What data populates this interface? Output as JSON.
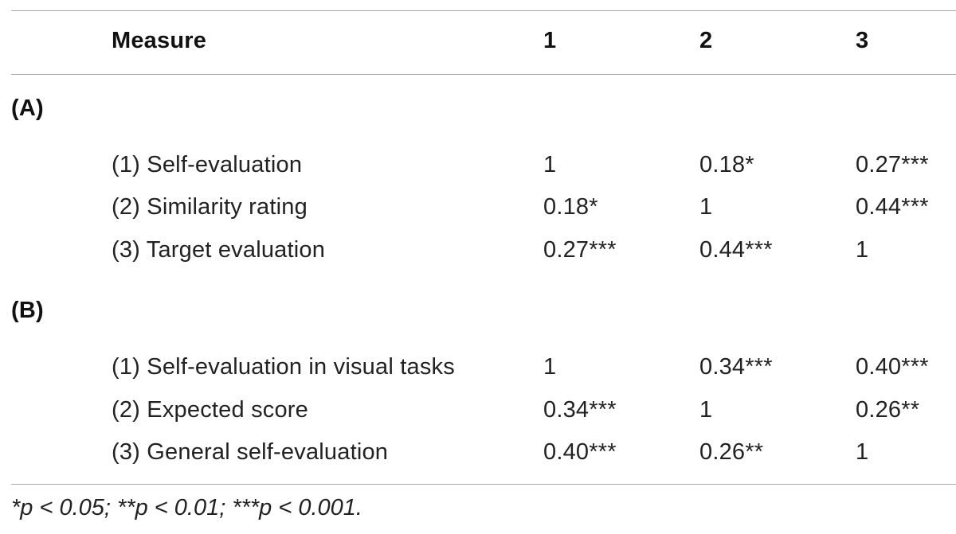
{
  "table": {
    "headers": [
      "Measure",
      "1",
      "2",
      "3"
    ],
    "sections": [
      {
        "label": "(A)",
        "rows": [
          {
            "measure": "(1) Self-evaluation",
            "c1": "1",
            "c2": "0.18*",
            "c3": "0.27***"
          },
          {
            "measure": "(2) Similarity rating",
            "c1": "0.18*",
            "c2": "1",
            "c3": "0.44***"
          },
          {
            "measure": "(3) Target evaluation",
            "c1": "0.27***",
            "c2": "0.44***",
            "c3": "1"
          }
        ]
      },
      {
        "label": "(B)",
        "rows": [
          {
            "measure": "(1) Self-evaluation in visual tasks",
            "c1": "1",
            "c2": "0.34***",
            "c3": "0.40***"
          },
          {
            "measure": "(2) Expected score",
            "c1": "0.34***",
            "c2": "1",
            "c3": "0.26**"
          },
          {
            "measure": "(3) General self-evaluation",
            "c1": "0.40***",
            "c2": "0.26**",
            "c3": "1"
          }
        ]
      }
    ],
    "footnote": "*p < 0.05; **p < 0.01; ***p < 0.001."
  }
}
